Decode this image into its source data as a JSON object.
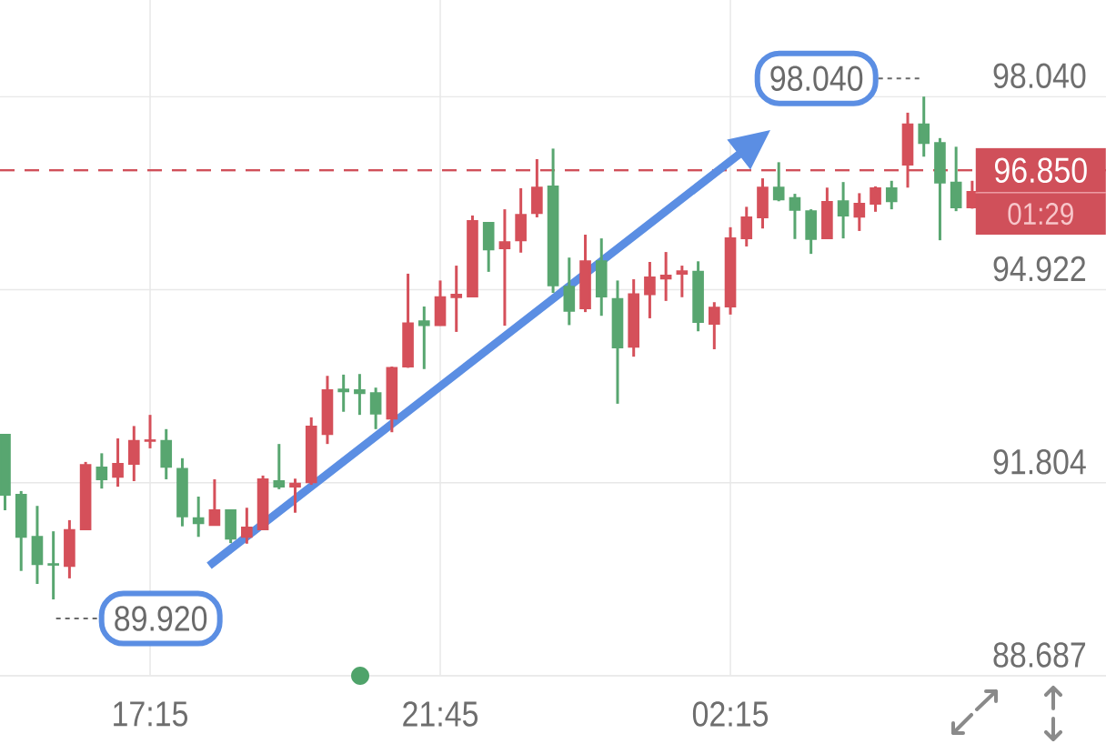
{
  "chart_data": {
    "type": "candlestick",
    "categories": [
      null,
      null,
      null,
      null,
      null,
      null,
      null,
      null,
      null,
      "17:15",
      null,
      null,
      null,
      null,
      null,
      null,
      null,
      null,
      null,
      null,
      null,
      null,
      null,
      null,
      null,
      null,
      null,
      "21:45",
      null,
      null,
      null,
      null,
      null,
      null,
      null,
      null,
      null,
      null,
      null,
      null,
      null,
      null,
      null,
      null,
      null,
      "02:15",
      null,
      null,
      null,
      null,
      null,
      null,
      null,
      null,
      null,
      null,
      null,
      null,
      null,
      null,
      null
    ],
    "ohlc": [
      [
        92.58,
        92.58,
        91.36,
        91.61
      ],
      [
        91.61,
        91.67,
        90.38,
        90.93
      ],
      [
        90.93,
        91.43,
        90.17,
        90.49
      ],
      [
        90.49,
        91.02,
        89.92,
        90.48
      ],
      [
        90.46,
        91.2,
        90.26,
        91.04
      ],
      [
        91.05,
        92.14,
        91.04,
        92.09
      ],
      [
        92.05,
        92.28,
        91.71,
        91.86
      ],
      [
        91.9,
        92.52,
        91.74,
        92.11
      ],
      [
        92.11,
        92.72,
        91.83,
        92.48
      ],
      [
        92.48,
        92.9,
        92.36,
        92.49
      ],
      [
        92.48,
        92.67,
        91.86,
        92.06
      ],
      [
        92.03,
        92.2,
        91.1,
        91.26
      ],
      [
        91.23,
        91.58,
        90.93,
        91.15
      ],
      [
        91.12,
        91.86,
        91.11,
        91.36
      ],
      [
        91.36,
        91.36,
        90.83,
        90.9
      ],
      [
        90.93,
        91.4,
        90.82,
        91.08
      ],
      [
        91.05,
        91.92,
        91.04,
        91.86
      ],
      [
        91.83,
        92.43,
        91.7,
        91.74
      ],
      [
        91.74,
        91.87,
        91.32,
        91.79
      ],
      [
        91.81,
        92.86,
        91.77,
        92.71
      ],
      [
        92.59,
        93.53,
        92.43,
        93.3
      ],
      [
        93.31,
        93.55,
        92.95,
        93.28
      ],
      [
        93.3,
        93.56,
        92.9,
        93.25
      ],
      [
        93.25,
        93.34,
        92.67,
        92.92
      ],
      [
        92.84,
        93.68,
        92.62,
        93.66
      ],
      [
        93.68,
        95.18,
        93.66,
        94.38
      ],
      [
        94.41,
        94.65,
        93.64,
        94.35
      ],
      [
        94.35,
        95.07,
        94.34,
        94.8
      ],
      [
        94.8,
        95.31,
        94.24,
        94.84
      ],
      [
        94.81,
        96.12,
        94.8,
        96.03
      ],
      [
        96.0,
        96.0,
        95.21,
        95.57
      ],
      [
        95.59,
        96.22,
        94.34,
        95.69
      ],
      [
        95.72,
        96.56,
        95.52,
        96.13
      ],
      [
        96.16,
        97.03,
        96.09,
        96.57
      ],
      [
        96.59,
        97.2,
        94.87,
        94.99
      ],
      [
        94.97,
        95.44,
        94.35,
        94.58
      ],
      [
        94.62,
        95.81,
        94.56,
        95.38
      ],
      [
        95.38,
        95.75,
        94.5,
        94.81
      ],
      [
        94.77,
        95.07,
        93.08,
        93.99
      ],
      [
        94.0,
        95.09,
        93.84,
        94.85
      ],
      [
        94.85,
        95.37,
        94.46,
        95.12
      ],
      [
        95.1,
        95.53,
        94.74,
        95.15
      ],
      [
        95.18,
        95.31,
        94.8,
        95.22
      ],
      [
        95.21,
        95.38,
        94.25,
        94.4
      ],
      [
        94.37,
        94.72,
        93.96,
        94.63
      ],
      [
        94.65,
        95.93,
        94.52,
        95.75
      ],
      [
        95.75,
        96.26,
        95.62,
        96.09
      ],
      [
        96.09,
        96.72,
        95.91,
        96.57
      ],
      [
        96.57,
        96.98,
        96.35,
        96.38
      ],
      [
        96.4,
        96.47,
        95.74,
        96.21
      ],
      [
        96.19,
        96.22,
        95.5,
        95.74
      ],
      [
        95.75,
        96.57,
        95.74,
        96.34
      ],
      [
        96.35,
        96.66,
        95.75,
        96.12
      ],
      [
        96.1,
        96.48,
        95.87,
        96.31
      ],
      [
        96.31,
        96.59,
        96.18,
        96.56
      ],
      [
        96.56,
        96.68,
        96.22,
        96.35
      ],
      [
        96.94,
        97.78,
        96.57,
        97.59
      ],
      [
        97.59,
        98.04,
        97.07,
        97.29
      ],
      [
        97.29,
        97.37,
        95.72,
        96.65
      ],
      [
        96.65,
        97.23,
        96.19,
        96.25
      ],
      [
        96.25,
        96.68,
        96.23,
        96.5
      ]
    ],
    "colors": [
      "#58a670",
      "#58a670",
      "#58a670",
      "#58a670",
      "#d5505a",
      "#d5505a",
      "#58a670",
      "#d5505a",
      "#d5505a",
      "#d5505a",
      "#58a670",
      "#58a670",
      "#58a670",
      "#d5505a",
      "#58a670",
      "#d5505a",
      "#d5505a",
      "#58a670",
      "#d5505a",
      "#d5505a",
      "#d5505a",
      "#58a670",
      "#58a670",
      "#58a670",
      "#d5505a",
      "#d5505a",
      "#58a670",
      "#d5505a",
      "#d5505a",
      "#d5505a",
      "#58a670",
      "#d5505a",
      "#d5505a",
      "#d5505a",
      "#58a670",
      "#58a670",
      "#d5505a",
      "#58a670",
      "#58a670",
      "#d5505a",
      "#d5505a",
      "#d5505a",
      "#d5505a",
      "#58a670",
      "#d5505a",
      "#d5505a",
      "#d5505a",
      "#d5505a",
      "#58a670",
      "#58a670",
      "#58a670",
      "#d5505a",
      "#58a670",
      "#d5505a",
      "#d5505a",
      "#58a670",
      "#d5505a",
      "#58a670",
      "#58a670",
      "#58a670",
      "#d5505a"
    ],
    "ylim": [
      88.687,
      99.6
    ],
    "yticks": [
      88.687,
      91.804,
      94.922,
      {
        "value": 98.04,
        "label": "98.040"
      }
    ],
    "grid": true,
    "ref_lines": [
      {
        "axis": "y",
        "value": 96.85,
        "label": "96.850",
        "color": "#d0505a",
        "line_style": "dashed"
      }
    ],
    "annotations": [
      "98.040",
      "89.920",
      "01:29"
    ]
  }
}
